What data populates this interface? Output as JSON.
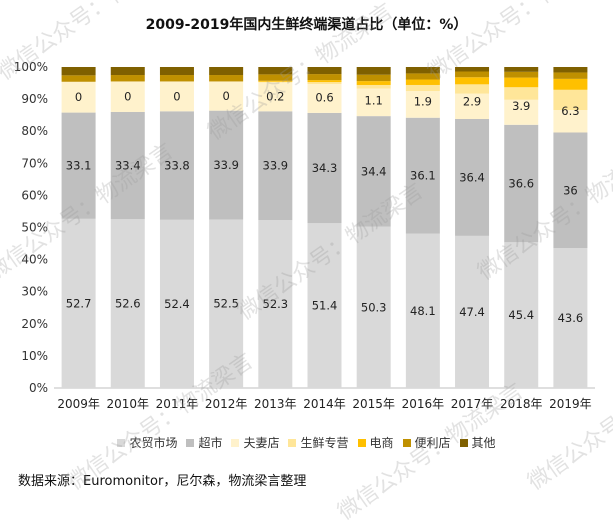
{
  "chart_data": {
    "type": "bar",
    "stacked": true,
    "title": "2009-2019年国内生鲜终端渠道占比（单位：%）",
    "categories": [
      "2009年",
      "2010年",
      "2011年",
      "2012年",
      "2013年",
      "2014年",
      "2015年",
      "2016年",
      "2017年",
      "2018年",
      "2019年"
    ],
    "ylim": [
      0,
      100
    ],
    "y_ticks": [
      "0%",
      "10%",
      "20%",
      "30%",
      "40%",
      "50%",
      "60%",
      "70%",
      "80%",
      "90%",
      "100%"
    ],
    "grid": false,
    "legend_position": "bottom",
    "series": [
      {
        "name": "农贸市场",
        "color": "#d9d9d9",
        "values": [
          52.7,
          52.6,
          52.4,
          52.5,
          52.3,
          51.4,
          50.3,
          48.1,
          47.4,
          45.4,
          43.6
        ],
        "labeled": true
      },
      {
        "name": "超市",
        "color": "#bfbfbf",
        "values": [
          33.1,
          33.4,
          33.8,
          33.9,
          33.9,
          34.3,
          34.4,
          36.1,
          36.4,
          36.6,
          36
        ],
        "labeled": true
      },
      {
        "name": "夫妻店",
        "color": "#fff2cc",
        "values": [
          9.6,
          9.5,
          9.3,
          9.1,
          9.0,
          9.0,
          8.6,
          8.3,
          7.9,
          7.8,
          7.0
        ]
      },
      {
        "name": "生鲜专营",
        "color": "#ffe699",
        "values": [
          0,
          0,
          0,
          0,
          0.2,
          0.6,
          1.1,
          1.9,
          2.9,
          3.9,
          6.3
        ],
        "labeled": true
      },
      {
        "name": "电商",
        "color": "#ffc000",
        "values": [
          0,
          0,
          0,
          0,
          0.3,
          0.6,
          1.2,
          1.7,
          2.2,
          3.0,
          3.4
        ]
      },
      {
        "name": "便利店",
        "color": "#bf9000",
        "values": [
          2.0,
          2.0,
          2.0,
          2.0,
          2.0,
          1.9,
          2.0,
          1.9,
          1.8,
          1.8,
          2.0
        ]
      },
      {
        "name": "其他",
        "color": "#7f6000",
        "values": [
          2.6,
          2.5,
          2.5,
          2.5,
          2.3,
          2.2,
          2.4,
          2.0,
          1.4,
          1.5,
          1.7
        ]
      }
    ]
  },
  "source_text": "数据来源：Euromonitor，尼尔森，物流梁言整理",
  "watermark_text": "微信公众号：物流梁言"
}
